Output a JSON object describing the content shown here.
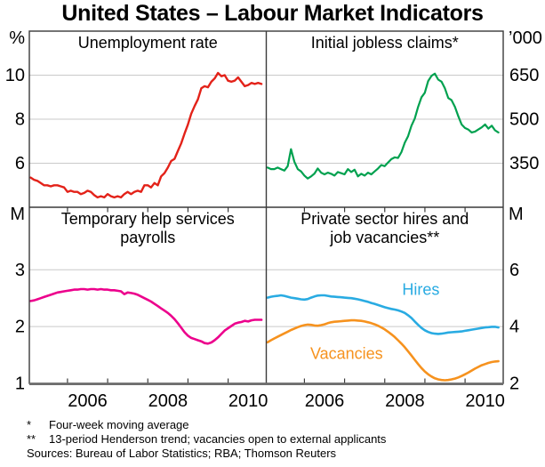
{
  "title": "United States – Labour Market Indicators",
  "footnotes": [
    {
      "marker": "*",
      "text": "Four-week moving average"
    },
    {
      "marker": "**",
      "text": "13-period Henderson trend; vacancies open to external applicants"
    }
  ],
  "sources": "Sources: Bureau of Labor Statistics; RBA; Thomson Reuters",
  "chart_data": {
    "type": "line",
    "x_domain": [
      2005.05,
      2010.95
    ],
    "x_year_ticks": [
      2006,
      2007,
      2008,
      2009,
      2010
    ],
    "x_tick_labels": [
      {
        "label": "2006",
        "x": 2006.5
      },
      {
        "label": "2008",
        "x": 2008.5
      },
      {
        "label": "2010",
        "x": 2010.5
      }
    ],
    "colors": {
      "grid": "#c9c9c9",
      "frame": "#3a3a3a",
      "baseline": "#6e6e6e",
      "text": "#000000"
    },
    "panels": [
      {
        "id": "unemployment-rate",
        "title_lines": [
          "Unemployment rate"
        ],
        "unit_label": "%",
        "axis_side": "left",
        "ylim": [
          4,
          12
        ],
        "yticks": [
          6,
          8,
          10
        ],
        "series": [
          {
            "id": "unemployment",
            "name": "Unemployment rate",
            "color": "#e32219",
            "width": 2.4,
            "x_start": 2005.083,
            "x_step": 0.0833,
            "y": [
              5.35,
              5.25,
              5.2,
              5.1,
              5.0,
              5.0,
              4.95,
              5.0,
              5.0,
              4.95,
              4.9,
              4.7,
              4.75,
              4.7,
              4.7,
              4.6,
              4.65,
              4.75,
              4.7,
              4.55,
              4.45,
              4.5,
              4.45,
              4.6,
              4.5,
              4.45,
              4.5,
              4.45,
              4.6,
              4.7,
              4.6,
              4.7,
              4.75,
              4.7,
              5.0,
              5.0,
              4.9,
              5.1,
              5.0,
              5.4,
              5.55,
              5.8,
              6.1,
              6.2,
              6.55,
              6.9,
              7.35,
              7.75,
              8.25,
              8.6,
              8.9,
              9.4,
              9.5,
              9.45,
              9.7,
              9.85,
              10.1,
              9.95,
              10.0,
              9.75,
              9.7,
              9.75,
              9.9,
              9.7,
              9.5,
              9.55,
              9.65,
              9.6,
              9.65,
              9.6
            ]
          }
        ],
        "annotations": []
      },
      {
        "id": "initial-jobless-claims",
        "title_lines": [
          "Initial jobless claims*"
        ],
        "unit_label": "’000",
        "axis_side": "right",
        "ylim": [
          200,
          800
        ],
        "yticks": [
          350,
          500,
          650
        ],
        "series": [
          {
            "id": "jobless-claims",
            "name": "Initial jobless claims",
            "color": "#00a14f",
            "width": 2.2,
            "x_start": 2005.083,
            "x_step": 0.0833,
            "y": [
              335,
              330,
              330,
              335,
              330,
              325,
              340,
              398,
              355,
              330,
              322,
              308,
              298,
              305,
              315,
              332,
              318,
              312,
              318,
              314,
              308,
              320,
              316,
              312,
              330,
              320,
              328,
              305,
              314,
              308,
              318,
              312,
              322,
              332,
              344,
              340,
              352,
              364,
              370,
              368,
              388,
              420,
              442,
              478,
              502,
              542,
              575,
              590,
              630,
              648,
              655,
              635,
              628,
              605,
              572,
              565,
              542,
              510,
              482,
              470,
              465,
              455,
              458,
              465,
              472,
              482,
              468,
              478,
              462,
              455
            ]
          }
        ],
        "annotations": []
      },
      {
        "id": "temporary-help-payrolls",
        "title_lines": [
          "Temporary help services",
          "payrolls"
        ],
        "unit_label": "M",
        "axis_side": "left",
        "ylim": [
          1,
          4.1
        ],
        "yticks": [
          1,
          2,
          3
        ],
        "series": [
          {
            "id": "temp-help-payrolls",
            "name": "Temporary help services payrolls",
            "color": "#ec008c",
            "width": 2.6,
            "x_start": 2005.083,
            "x_step": 0.0833,
            "y": [
              2.45,
              2.46,
              2.48,
              2.5,
              2.52,
              2.54,
              2.56,
              2.58,
              2.6,
              2.61,
              2.62,
              2.63,
              2.64,
              2.65,
              2.65,
              2.66,
              2.66,
              2.65,
              2.66,
              2.66,
              2.65,
              2.66,
              2.65,
              2.65,
              2.64,
              2.64,
              2.63,
              2.62,
              2.57,
              2.6,
              2.59,
              2.58,
              2.56,
              2.53,
              2.5,
              2.47,
              2.44,
              2.4,
              2.36,
              2.32,
              2.28,
              2.24,
              2.19,
              2.13,
              2.06,
              1.98,
              1.9,
              1.84,
              1.8,
              1.78,
              1.76,
              1.74,
              1.71,
              1.7,
              1.72,
              1.76,
              1.81,
              1.87,
              1.93,
              1.97,
              2.01,
              2.05,
              2.07,
              2.08,
              2.1,
              2.09,
              2.11,
              2.12,
              2.12,
              2.12
            ]
          }
        ],
        "annotations": []
      },
      {
        "id": "hires-vacancies",
        "title_lines": [
          "Private sector hires and",
          "job vacancies**"
        ],
        "unit_label": "M",
        "axis_side": "right",
        "ylim": [
          2,
          8.2
        ],
        "yticks": [
          2,
          4,
          6
        ],
        "series": [
          {
            "id": "hires",
            "name": "Hires",
            "color": "#29abe2",
            "width": 2.6,
            "x_start": 2005.083,
            "x_step": 0.0833,
            "y": [
              5.02,
              5.05,
              5.07,
              5.08,
              5.1,
              5.08,
              5.05,
              5.02,
              5.0,
              4.98,
              4.96,
              4.95,
              4.97,
              5.02,
              5.06,
              5.09,
              5.1,
              5.1,
              5.08,
              5.06,
              5.05,
              5.04,
              5.03,
              5.02,
              5.01,
              5.0,
              4.98,
              4.96,
              4.93,
              4.9,
              4.87,
              4.83,
              4.8,
              4.76,
              4.72,
              4.68,
              4.65,
              4.62,
              4.6,
              4.57,
              4.53,
              4.48,
              4.4,
              4.3,
              4.18,
              4.06,
              3.95,
              3.87,
              3.81,
              3.77,
              3.75,
              3.74,
              3.75,
              3.77,
              3.79,
              3.8,
              3.81,
              3.82,
              3.83,
              3.85,
              3.87,
              3.89,
              3.91,
              3.93,
              3.95,
              3.97,
              3.98,
              3.99,
              3.99,
              3.97
            ]
          },
          {
            "id": "vacancies",
            "name": "Vacancies",
            "color": "#f6921e",
            "width": 2.6,
            "x_start": 2005.083,
            "x_step": 0.0833,
            "y": [
              3.45,
              3.52,
              3.58,
              3.64,
              3.7,
              3.76,
              3.82,
              3.88,
              3.93,
              3.98,
              4.02,
              4.05,
              4.07,
              4.06,
              4.04,
              4.03,
              4.05,
              4.08,
              4.12,
              4.15,
              4.17,
              4.18,
              4.19,
              4.2,
              4.21,
              4.22,
              4.22,
              4.21,
              4.2,
              4.18,
              4.15,
              4.12,
              4.08,
              4.03,
              3.97,
              3.9,
              3.82,
              3.73,
              3.63,
              3.52,
              3.4,
              3.27,
              3.13,
              2.98,
              2.83,
              2.68,
              2.54,
              2.42,
              2.32,
              2.24,
              2.18,
              2.14,
              2.12,
              2.11,
              2.12,
              2.14,
              2.17,
              2.21,
              2.26,
              2.32,
              2.38,
              2.45,
              2.52,
              2.58,
              2.64,
              2.68,
              2.72,
              2.75,
              2.77,
              2.78
            ]
          }
        ],
        "annotations": [
          {
            "text": "Hires",
            "color": "#29abe2",
            "x": 2008.9,
            "y": 5.3
          },
          {
            "text": "Vacancies",
            "color": "#f6921e",
            "x": 2007.05,
            "y": 3.05
          }
        ]
      }
    ]
  }
}
